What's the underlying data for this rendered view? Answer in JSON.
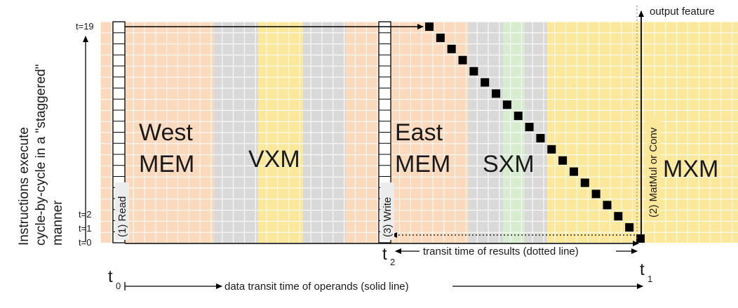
{
  "regions": [
    {
      "label": "West\nMEM",
      "color": "#fbd9bc"
    },
    {
      "label": "VXM",
      "color": "#d9d9d9"
    },
    {
      "label": "",
      "color": "#fbe89a"
    },
    {
      "label": "",
      "color": "#d9d9d9"
    },
    {
      "label": "",
      "color": "#d9d9d9"
    },
    {
      "label": "East\nMEM",
      "color": "#fbd9bc"
    },
    {
      "label": "SXM",
      "color": "#d9d9d9"
    },
    {
      "label": "",
      "color": "#d7edd0"
    },
    {
      "label": "",
      "color": "#d9d9d9"
    },
    {
      "label": "",
      "color": "#fbe89a"
    },
    {
      "label": "MXM",
      "color": "#fbe89a"
    }
  ],
  "labels": {
    "y_axis": [
      "Instructions execute",
      "cycle-by-cycle in a \"staggered\"",
      "manner"
    ],
    "t_top": "t=19",
    "t_2": "t=2",
    "t_1": "t=1",
    "t_0": "t=0",
    "read": "(1) Read",
    "write": "(3) Write",
    "matmul": "(2) MatMul or Conv",
    "output_feature": "output feature",
    "transit_results": "transit time of results (dotted line)",
    "transit_operands": "data transit time of operands (solid line)",
    "t0_main": "t",
    "t0_sub": "0",
    "t1_main": "t",
    "t1_sub": "1",
    "t2_main": "t",
    "t2_sub": "2"
  },
  "colors": {
    "grid_line": "#ffffff",
    "ink": "#000000"
  }
}
